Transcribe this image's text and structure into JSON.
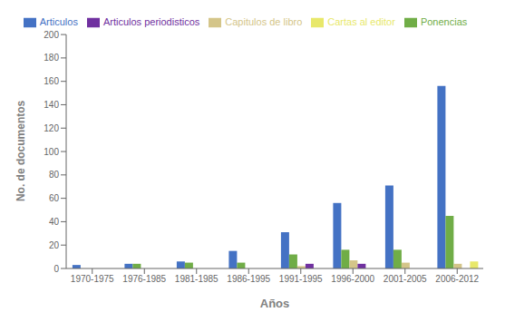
{
  "chart_data": {
    "type": "bar",
    "xlabel": "Años",
    "ylabel": "No. de documentos",
    "categories": [
      "1970-1975",
      "1976-1985",
      "1981-1985",
      "1986-1995",
      "1991-1995",
      "1996-2000",
      "2001-2005",
      "2006-2012"
    ],
    "series": [
      {
        "name": "Articulos",
        "color": "#4472c4",
        "values": [
          3,
          4,
          6,
          15,
          31,
          56,
          71,
          156
        ]
      },
      {
        "name": "Ponencias",
        "color": "#70ad47",
        "values": [
          0,
          4,
          5,
          5,
          12,
          16,
          16,
          45
        ]
      },
      {
        "name": "Capitulos de libro",
        "color": "#d4c589",
        "values": [
          0,
          0,
          0,
          0,
          2,
          7,
          5,
          4
        ]
      },
      {
        "name": "Articulos periodisticos",
        "color": "#7030a0",
        "values": [
          0,
          0,
          0,
          0,
          4,
          4,
          0,
          0
        ]
      },
      {
        "name": "Cartas al editor",
        "color": "#e8e86a",
        "values": [
          0,
          0,
          0,
          0,
          0,
          0,
          0,
          6
        ]
      }
    ],
    "ylim": [
      0,
      200
    ],
    "yticks": [
      0,
      20,
      40,
      60,
      80,
      100,
      120,
      140,
      160,
      180,
      200
    ],
    "grid": false,
    "legend": "top"
  }
}
